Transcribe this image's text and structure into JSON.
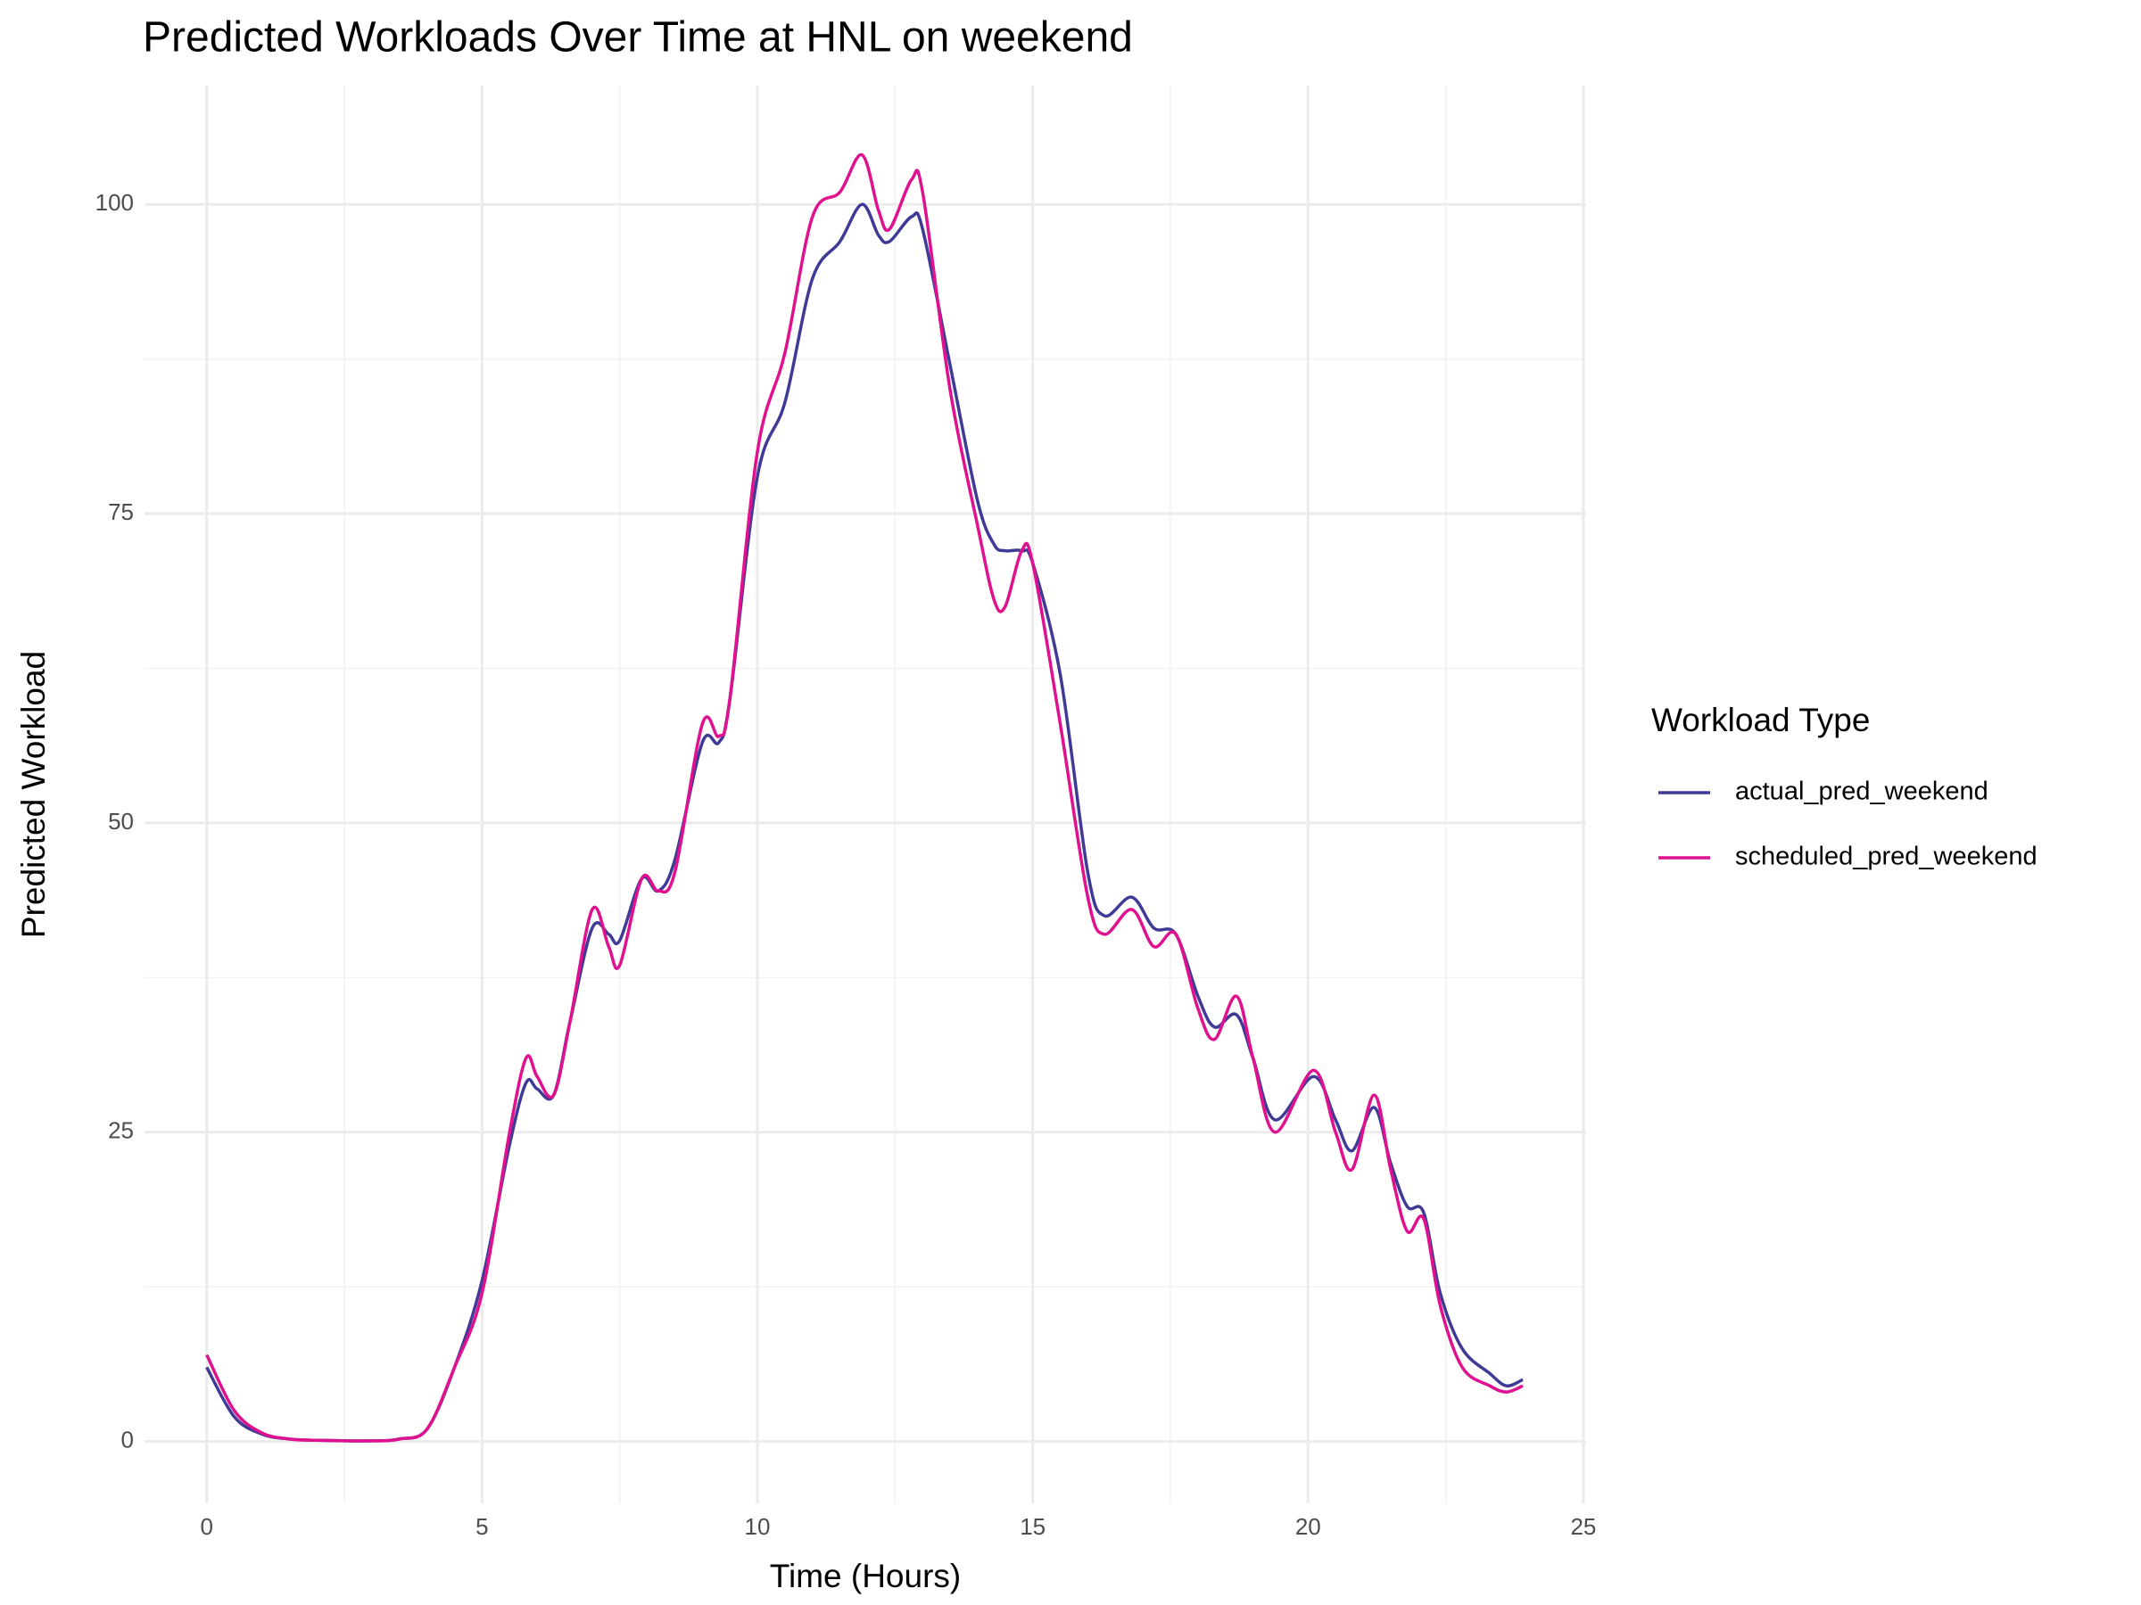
{
  "chart_data": {
    "type": "line",
    "title": "Predicted Workloads Over Time at HNL on weekend",
    "x_label": "Time (Hours)",
    "y_label": "Predicted Workload",
    "legend_title": "Workload Type",
    "legend_position": "right",
    "grid": true,
    "x": [
      0,
      0.5,
      1,
      1.5,
      2,
      3,
      3.5,
      4,
      4.5,
      5,
      5.5,
      5.8,
      6.0,
      6.3,
      6.6,
      7.0,
      7.3,
      7.5,
      7.9,
      8.2,
      8.5,
      9.0,
      9.3,
      9.5,
      10,
      10.5,
      11,
      11.5,
      11.9,
      12.2,
      12.4,
      12.8,
      13,
      13.5,
      14,
      14.3,
      14.5,
      14.8,
      15,
      15.5,
      16,
      16.3,
      16.8,
      17.2,
      17.6,
      18,
      18.3,
      18.7,
      19.0,
      19.4,
      20.1,
      20.5,
      20.8,
      21.2,
      21.5,
      21.8,
      22.1,
      22.4,
      22.8,
      23.3,
      23.6,
      23.9
    ],
    "series": [
      {
        "name": "actual_pred_weekend",
        "color": "#3f3a96",
        "values": [
          6,
          2,
          0.6,
          0.2,
          0.1,
          0.05,
          0.2,
          1,
          6,
          13,
          24,
          29,
          28.5,
          28,
          34,
          41.5,
          41,
          40.5,
          45.5,
          44.5,
          47,
          56.5,
          56.5,
          60,
          78,
          84,
          94,
          97,
          100,
          97.5,
          97,
          99,
          98,
          87,
          76,
          72.5,
          72,
          72,
          71,
          62,
          46,
          42.5,
          44,
          41.5,
          41,
          36,
          33.5,
          34.5,
          31,
          26,
          29.5,
          26,
          23.5,
          27,
          22.5,
          19,
          18.5,
          12,
          7.5,
          5.5,
          4.5,
          5
        ]
      },
      {
        "name": "scheduled_pred_weekend",
        "color": "#e0118f",
        "values": [
          7,
          2.5,
          0.7,
          0.2,
          0.1,
          0.05,
          0.2,
          1,
          6,
          12,
          25,
          31,
          29.5,
          28,
          34,
          43,
          40,
          38.5,
          45.5,
          44.5,
          46,
          58,
          57,
          60,
          80,
          88,
          99,
          101,
          104,
          99.5,
          98,
          102,
          101,
          85,
          74,
          68,
          67.5,
          72,
          71,
          58,
          44,
          41,
          43,
          40,
          41,
          35,
          32.5,
          36,
          31,
          25,
          30,
          25,
          22,
          28,
          22,
          17,
          18,
          11,
          6,
          4.5,
          4,
          4.5
        ]
      }
    ],
    "xlim": [
      -1.13,
      25.05
    ],
    "xticks": [
      0,
      5,
      10,
      15,
      20,
      25
    ],
    "ylim": [
      -5,
      109.6
    ],
    "yticks": [
      0,
      25,
      50,
      75,
      100
    ]
  }
}
